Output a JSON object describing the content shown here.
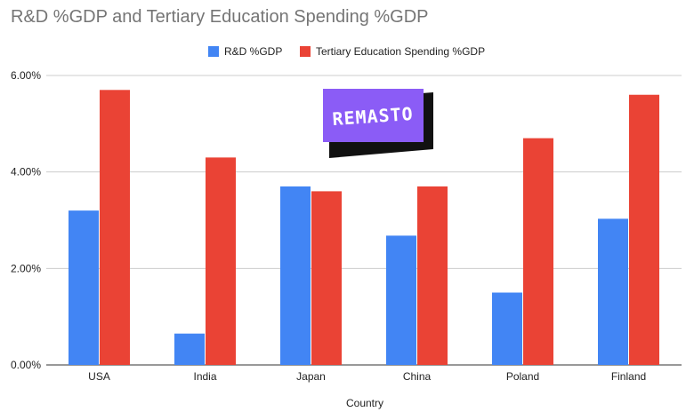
{
  "chart_data": {
    "type": "bar",
    "title": "R&D %GDP and Tertiary Education Spending %GDP",
    "xlabel": "Country",
    "ylabel": "",
    "categories": [
      "USA",
      "India",
      "Japan",
      "China",
      "Poland",
      "Finland"
    ],
    "series": [
      {
        "name": "R&D %GDP",
        "color": "#4285f4",
        "values": [
          3.2,
          0.65,
          3.7,
          2.68,
          1.5,
          3.03
        ]
      },
      {
        "name": "Tertiary Education Spending %GDP",
        "color": "#ea4335",
        "values": [
          5.7,
          4.3,
          3.6,
          3.7,
          4.7,
          5.6
        ]
      }
    ],
    "ylim": [
      0,
      6
    ],
    "yticks": [
      0,
      2,
      4,
      6
    ],
    "ytick_labels": [
      "0.00%",
      "2.00%",
      "4.00%",
      "6.00%"
    ],
    "grid": true,
    "legend_position": "top-center"
  },
  "watermark": {
    "text": "REMASTO",
    "color": "#8b5cf6"
  }
}
